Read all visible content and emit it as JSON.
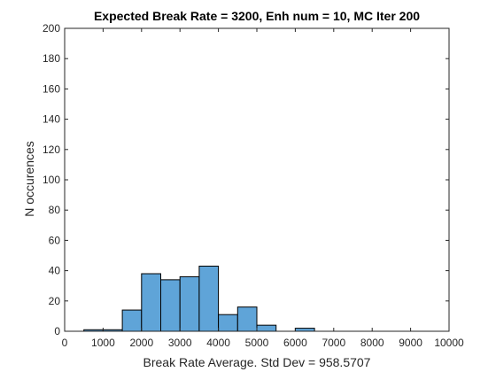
{
  "chart_data": {
    "type": "bar",
    "title": "Expected Break Rate = 3200, Enh num = 10, MC Iter 200",
    "xlabel": "Break Rate Average. Std Dev = 958.5707",
    "ylabel": "N occurences",
    "xlim": [
      0,
      10000
    ],
    "ylim": [
      0,
      200
    ],
    "xticks": [
      "0",
      "1000",
      "2000",
      "3000",
      "4000",
      "5000",
      "6000",
      "7000",
      "8000",
      "9000",
      "10000"
    ],
    "yticks": [
      "0",
      "20",
      "40",
      "60",
      "80",
      "100",
      "120",
      "140",
      "160",
      "180",
      "200"
    ],
    "grid": false,
    "bar_color": "#5fa4d8",
    "bin_edges": [
      500,
      1000,
      1500,
      2000,
      2500,
      3000,
      3500,
      4000,
      4500,
      5000,
      5500,
      6000,
      6500
    ],
    "values": [
      1,
      1,
      14,
      38,
      34,
      36,
      43,
      11,
      16,
      4,
      0,
      2
    ]
  }
}
